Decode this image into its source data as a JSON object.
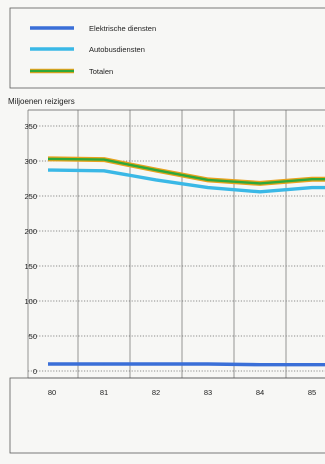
{
  "colors": {
    "background": "#f7f7f5",
    "frame": "#5a5a5a",
    "grid": "#6a6a6a",
    "elektrische": "#3a6fd8",
    "autobus": "#3ab8e6",
    "totalen_outer": "#e8a21c",
    "totalen_inner": "#2ea83a"
  },
  "chart_data": {
    "type": "line",
    "title": "",
    "ylabel": "Miljoenen reizigers",
    "xlabel": "",
    "x": [
      "80",
      "81",
      "82",
      "83",
      "84",
      "85"
    ],
    "ylim": [
      0,
      350
    ],
    "yticks": [
      0,
      50,
      100,
      150,
      200,
      250,
      300,
      350
    ],
    "grid": true,
    "legend_position": "top",
    "series": [
      {
        "name": "Elektrische diensten",
        "color": "#3a6fd8",
        "values": [
          10,
          10,
          10,
          10,
          9,
          9
        ]
      },
      {
        "name": "Autobusdiensten",
        "color": "#3ab8e6",
        "values": [
          287,
          286,
          273,
          262,
          256,
          262
        ]
      },
      {
        "name": "Totalen",
        "color": "#2ea83a",
        "outline": "#e8a21c",
        "values": [
          303,
          302,
          287,
          273,
          268,
          274
        ]
      }
    ]
  }
}
